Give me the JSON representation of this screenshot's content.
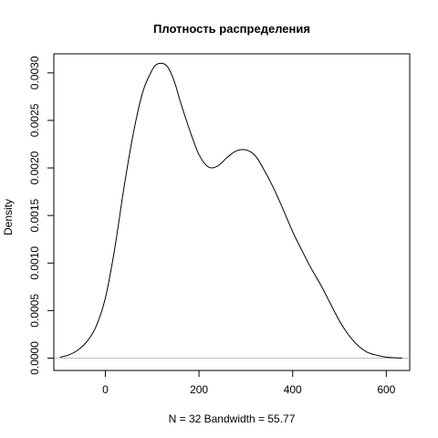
{
  "chart_data": {
    "type": "line",
    "title": "Плотность распределения",
    "xlabel": "N = 32   Bandwidth = 55.77",
    "ylabel": "Density",
    "xlim": [
      -110,
      650
    ],
    "ylim": [
      -0.00013,
      0.0032
    ],
    "x_ticks": [
      {
        "value": 0,
        "label": "0"
      },
      {
        "value": 200,
        "label": "200"
      },
      {
        "value": 400,
        "label": "400"
      },
      {
        "value": 600,
        "label": "600"
      }
    ],
    "y_ticks": [
      {
        "value": 0.0,
        "label": "0.0000"
      },
      {
        "value": 0.0005,
        "label": "0.0005"
      },
      {
        "value": 0.001,
        "label": "0.0010"
      },
      {
        "value": 0.0015,
        "label": "0.0015"
      },
      {
        "value": 0.002,
        "label": "0.0020"
      },
      {
        "value": 0.0025,
        "label": "0.0025"
      },
      {
        "value": 0.003,
        "label": "0.0030"
      }
    ],
    "zero_line": true,
    "zero_line_color": "#bebebe",
    "line_color": "#000000",
    "series": [
      {
        "x": [
          -97,
          -80,
          -60,
          -40,
          -20,
          0,
          20,
          40,
          60,
          80,
          100,
          110,
          120,
          130,
          140,
          150,
          160,
          180,
          200,
          220,
          240,
          260,
          280,
          300,
          320,
          340,
          360,
          380,
          400,
          420,
          440,
          460,
          480,
          500,
          520,
          540,
          560,
          580,
          600,
          620,
          634
        ],
        "y": [
          1e-05,
          3e-05,
          8e-05,
          0.00017,
          0.00033,
          0.00063,
          0.00115,
          0.0018,
          0.00237,
          0.0028,
          0.00303,
          0.00309,
          0.0031,
          0.00308,
          0.003,
          0.00287,
          0.0027,
          0.0024,
          0.00214,
          0.00201,
          0.00202,
          0.00211,
          0.00218,
          0.00219,
          0.00213,
          0.00197,
          0.00178,
          0.00156,
          0.00133,
          0.00113,
          0.00094,
          0.00077,
          0.00058,
          0.00039,
          0.00024,
          0.00013,
          6e-05,
          3e-05,
          1e-05,
          3e-06,
          1e-06
        ]
      }
    ]
  }
}
